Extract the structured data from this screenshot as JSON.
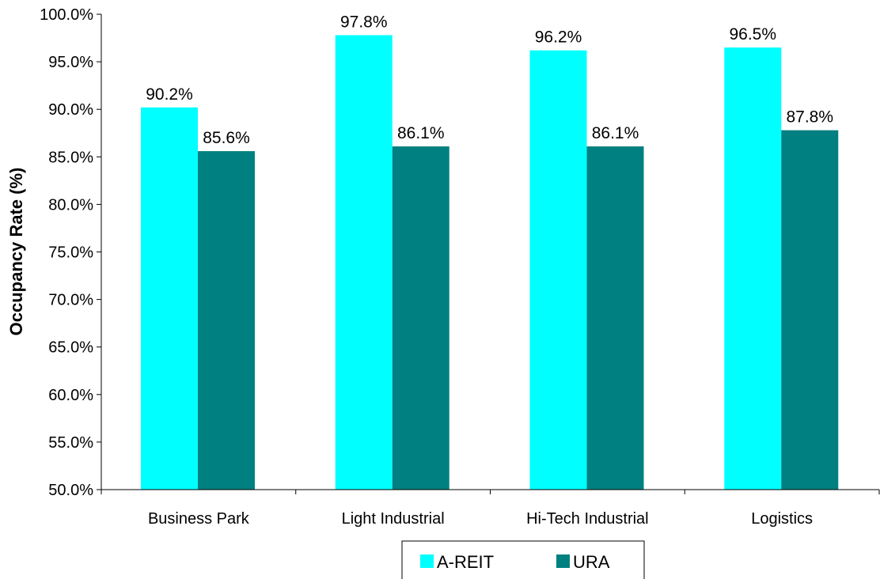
{
  "chart_data": {
    "type": "bar",
    "title": "",
    "xlabel": "",
    "ylabel": "Occupancy Rate (%)",
    "categories": [
      "Business Park",
      "Light Industrial",
      "Hi-Tech Industrial",
      "Logistics"
    ],
    "series": [
      {
        "name": "A-REIT",
        "values": [
          90.2,
          97.8,
          96.2,
          96.5
        ],
        "labels": [
          "90.2%",
          "97.8%",
          "96.2%",
          "96.5%"
        ],
        "color": "#00FFFF"
      },
      {
        "name": "URA",
        "values": [
          85.6,
          86.1,
          86.1,
          87.8
        ],
        "labels": [
          "85.6%",
          "86.1%",
          "86.1%",
          "87.8%"
        ],
        "color": "#008080"
      }
    ],
    "ylim": [
      50,
      100
    ],
    "y_ticks": [
      50,
      55,
      60,
      65,
      70,
      75,
      80,
      85,
      90,
      95,
      100
    ],
    "y_tick_labels": [
      "50.0%",
      "55.0%",
      "60.0%",
      "65.0%",
      "70.0%",
      "75.0%",
      "80.0%",
      "85.0%",
      "90.0%",
      "95.0%",
      "100.0%"
    ],
    "grid": false,
    "legend": "bottom"
  }
}
